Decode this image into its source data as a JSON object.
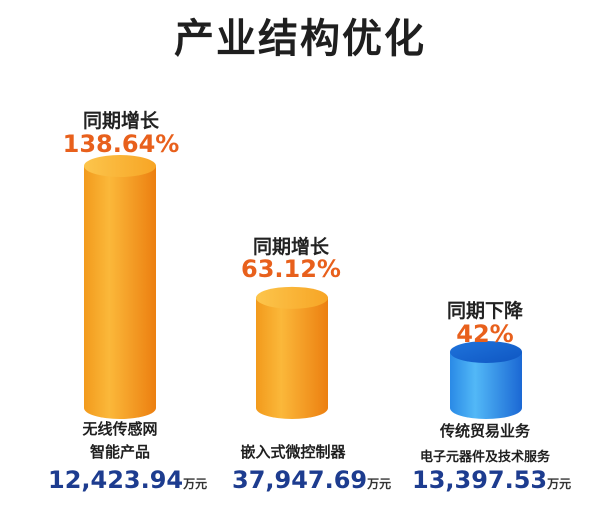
{
  "title": "产业结构优化",
  "chart_data": {
    "type": "bar",
    "style": "3d-cylinder",
    "categories": [
      {
        "lines": [
          "无线传感网",
          "智能产品"
        ],
        "amount": "12,423.94",
        "unit": "万元",
        "change_label": "同期增长",
        "change_value": "138.64%",
        "change_pct": 138.64,
        "color": "orange"
      },
      {
        "lines": [
          "嵌入式微控制器"
        ],
        "amount": "37,947.69",
        "unit": "万元",
        "change_label": "同期增长",
        "change_value": "63.12%",
        "change_pct": 63.12,
        "color": "orange"
      },
      {
        "lines": [
          "传统贸易业务",
          "电子元器件及技术服务"
        ],
        "amount": "13,397.53",
        "unit": "万元",
        "change_label": "同期下降",
        "change_value": "42%",
        "change_pct": -42,
        "color": "blue"
      }
    ],
    "colors": {
      "orange_light": "#fbb83a",
      "orange_dark": "#ee8a16",
      "blue_light": "#52b8f7",
      "blue_dark": "#1b72dd",
      "highlight": "#e8601c",
      "amount": "#1d3c8f"
    }
  }
}
